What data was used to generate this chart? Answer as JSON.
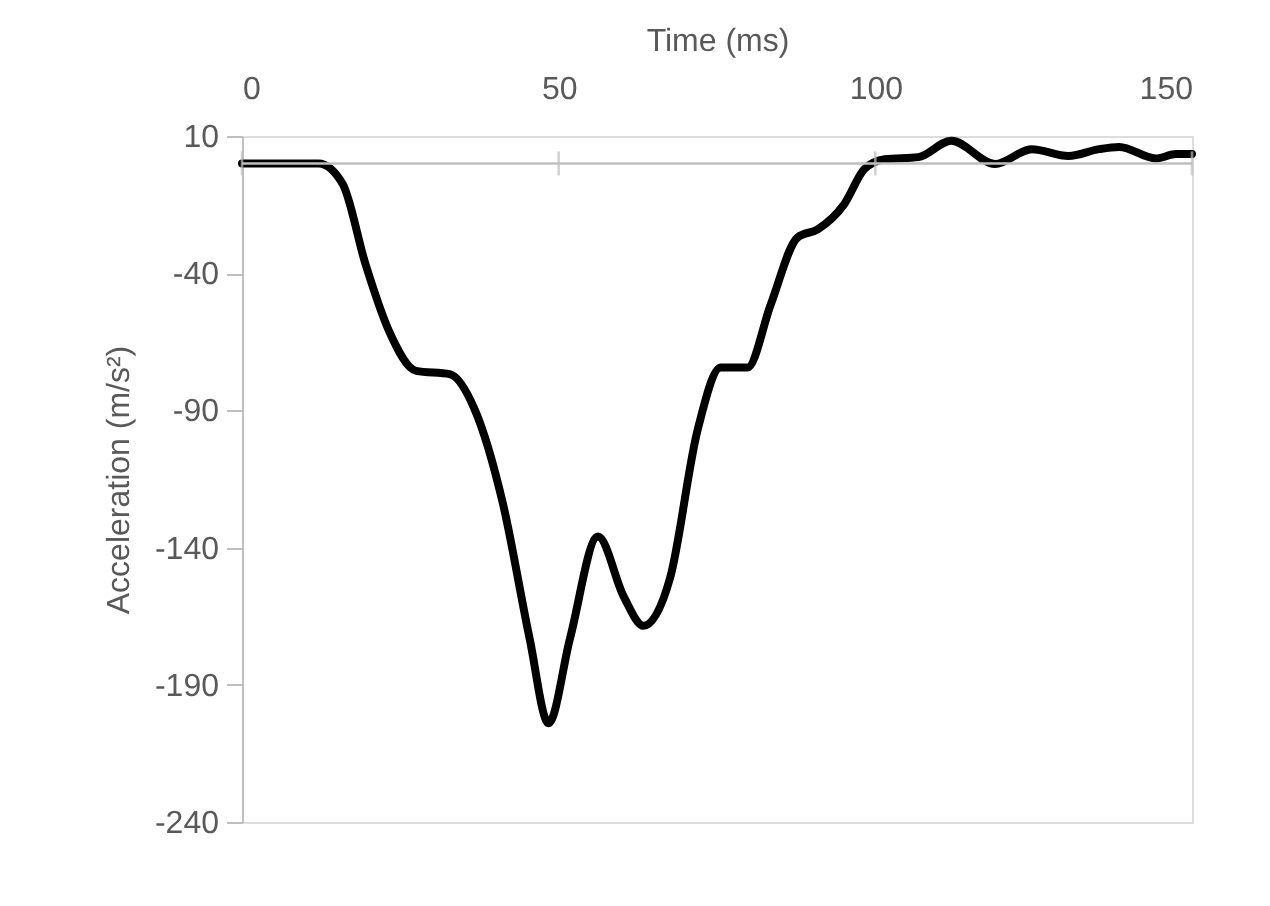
{
  "chart_data": {
    "type": "line",
    "xlabel": "Time (ms)",
    "ylabel": "Acceleration (m/s²)",
    "x": [
      0,
      12.1,
      15.9,
      19.5,
      23.2,
      27.5,
      32.8,
      36.8,
      41.2,
      45.4,
      48.4,
      51.8,
      56.2,
      60.3,
      63.4,
      67.6,
      71.9,
      75.6,
      79.8,
      83.5,
      87.7,
      90.9,
      95.1,
      98.3,
      101.5,
      106.8,
      112,
      118.9,
      124.7,
      130.5,
      135.3,
      138.5,
      144.3,
      147.5,
      150
    ],
    "series": [
      {
        "color": "#000000",
        "values": [
          0,
          0,
          -7.5,
          -36.7,
          -61,
          -75.6,
          -76.8,
          -90,
          -124,
          -173,
          -204,
          -173,
          -136,
          -158,
          -168.5,
          -151,
          -97.5,
          -74.4,
          -74.4,
          -51.3,
          -27,
          -24,
          -14.8,
          -2,
          1.5,
          2.3,
          8.3,
          -0.2,
          5.2,
          2.7,
          5.2,
          6,
          1.8,
          3.4,
          3.4
        ]
      }
    ],
    "xlim": [
      0,
      150
    ],
    "xticks": [
      0,
      50,
      100,
      150
    ],
    "ylim": [
      -240,
      10
    ],
    "yticks": [
      10,
      -40,
      -90,
      -140,
      -190,
      -240
    ],
    "grid": false,
    "marker": "none",
    "line_style": "solid"
  }
}
